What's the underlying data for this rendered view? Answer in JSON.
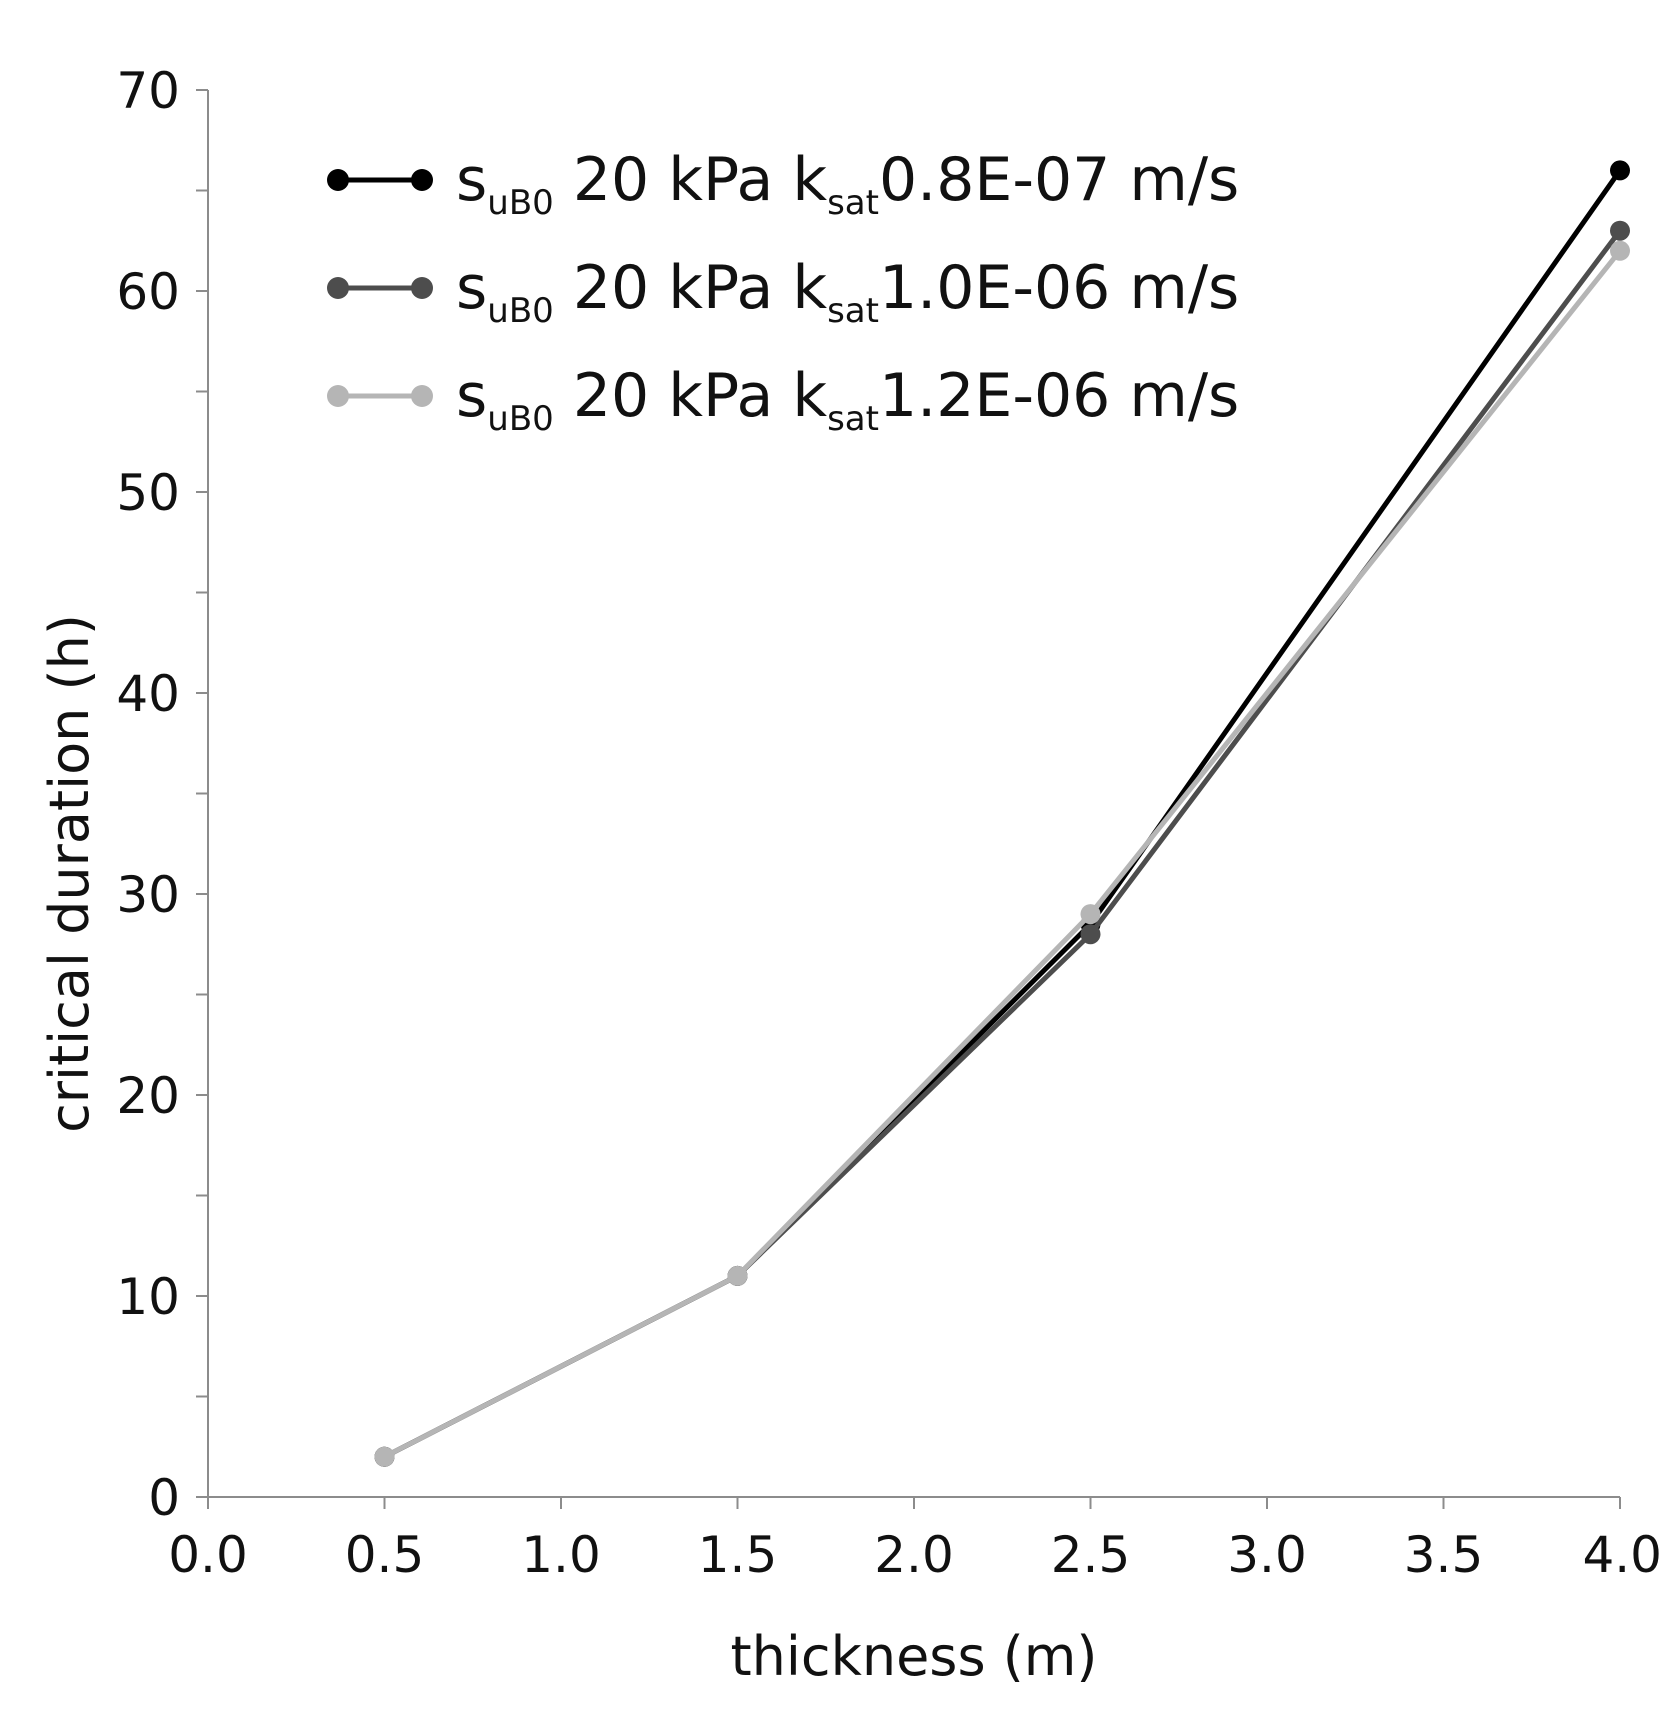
{
  "chart_data": {
    "type": "line",
    "title": "",
    "xlabel": "thickness (m)",
    "ylabel": "critical duration (h)",
    "xlim": [
      0.0,
      4.0
    ],
    "ylim": [
      0,
      70
    ],
    "x_ticks": [
      "0.0",
      "0.5",
      "1.0",
      "1.5",
      "2.0",
      "2.5",
      "3.0",
      "3.5",
      "4.0"
    ],
    "y_ticks": [
      "0",
      "10",
      "20",
      "30",
      "40",
      "50",
      "60",
      "70"
    ],
    "y_minor_step": 5,
    "grid": false,
    "legend_position": "top-left",
    "series": [
      {
        "name": "s_uB0 20 kPa k_sat 0.8E-07 m/s",
        "label_parts": {
          "a": "s",
          "a_sub": "uB0",
          "b": " 20 kPa k",
          "b_sub": "sat",
          "c": "0.8E-07 m/s"
        },
        "color": "#000000",
        "x": [
          0.5,
          1.5,
          2.5,
          4.0
        ],
        "y": [
          2,
          11,
          28.5,
          66
        ]
      },
      {
        "name": "s_uB0 20 kPa k_sat 1.0E-06 m/s",
        "label_parts": {
          "a": "s",
          "a_sub": "uB0",
          "b": " 20 kPa k",
          "b_sub": "sat",
          "c": "1.0E-06 m/s"
        },
        "color": "#4d4d4d",
        "x": [
          0.5,
          1.5,
          2.5,
          4.0
        ],
        "y": [
          2,
          11,
          28,
          63
        ]
      },
      {
        "name": "s_uB0 20 kPa k_sat 1.2E-06 m/s",
        "label_parts": {
          "a": "s",
          "a_sub": "uB0",
          "b": " 20 kPa k",
          "b_sub": "sat",
          "c": "1.2E-06 m/s"
        },
        "color": "#b5b5b5",
        "x": [
          0.5,
          1.5,
          2.5,
          4.0
        ],
        "y": [
          2,
          11,
          29,
          62
        ]
      }
    ]
  }
}
